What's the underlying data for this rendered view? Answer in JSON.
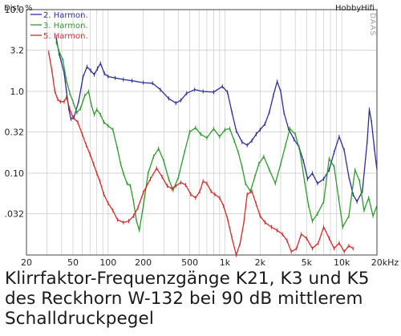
{
  "chart_data": {
    "type": "line",
    "ylabel": "Dist. %",
    "brand": "HobbyHifi",
    "side_label": "DAAS",
    "x_scale": "log",
    "y_scale": "log",
    "xlim": [
      20,
      20000
    ],
    "ylim": [
      0.01,
      10
    ],
    "x_ticks": [
      {
        "value": 20,
        "label": "20"
      },
      {
        "value": 50,
        "label": "50"
      },
      {
        "value": 100,
        "label": "100"
      },
      {
        "value": 200,
        "label": "200"
      },
      {
        "value": 500,
        "label": "500"
      },
      {
        "value": 1000,
        "label": "1k"
      },
      {
        "value": 2000,
        "label": "2k"
      },
      {
        "value": 5000,
        "label": "5k"
      },
      {
        "value": 10000,
        "label": "10k"
      },
      {
        "value": 20000,
        "label": "20kHz"
      }
    ],
    "y_ticks": [
      {
        "value": 10,
        "label": "10.0"
      },
      {
        "value": 3.2,
        "label": "3.2"
      },
      {
        "value": 1.0,
        "label": "1.0"
      },
      {
        "value": 0.32,
        "label": "0.32"
      },
      {
        "value": 0.1,
        "label": "0.10"
      },
      {
        "value": 0.032,
        "label": ".032"
      }
    ],
    "grid": true,
    "legend_position": "top-left",
    "series": [
      {
        "name": "2. Harmon.",
        "color": "#2b2f9a",
        "points": [
          [
            36,
            4.5
          ],
          [
            38,
            2.9
          ],
          [
            42,
            1.7
          ],
          [
            44,
            1.0
          ],
          [
            46,
            0.62
          ],
          [
            48,
            0.46
          ],
          [
            51,
            0.48
          ],
          [
            56,
            0.76
          ],
          [
            61,
            1.5
          ],
          [
            66,
            2.0
          ],
          [
            71,
            1.8
          ],
          [
            76,
            1.6
          ],
          [
            81,
            1.9
          ],
          [
            86,
            2.2
          ],
          [
            93,
            1.65
          ],
          [
            100,
            1.52
          ],
          [
            115,
            1.46
          ],
          [
            135,
            1.4
          ],
          [
            160,
            1.35
          ],
          [
            200,
            1.28
          ],
          [
            240,
            1.26
          ],
          [
            280,
            1.05
          ],
          [
            330,
            0.82
          ],
          [
            380,
            0.72
          ],
          [
            420,
            0.78
          ],
          [
            470,
            0.95
          ],
          [
            550,
            1.05
          ],
          [
            650,
            1.0
          ],
          [
            800,
            0.98
          ],
          [
            950,
            1.15
          ],
          [
            1050,
            0.98
          ],
          [
            1150,
            0.55
          ],
          [
            1250,
            0.33
          ],
          [
            1400,
            0.24
          ],
          [
            1550,
            0.22
          ],
          [
            1700,
            0.25
          ],
          [
            1850,
            0.3
          ],
          [
            2000,
            0.34
          ],
          [
            2200,
            0.4
          ],
          [
            2400,
            0.56
          ],
          [
            2600,
            0.9
          ],
          [
            2800,
            1.32
          ],
          [
            3000,
            1.0
          ],
          [
            3200,
            0.55
          ],
          [
            3500,
            0.35
          ],
          [
            3900,
            0.26
          ],
          [
            4300,
            0.21
          ],
          [
            4700,
            0.14
          ],
          [
            5100,
            0.085
          ],
          [
            5600,
            0.1
          ],
          [
            6200,
            0.075
          ],
          [
            7000,
            0.085
          ],
          [
            7800,
            0.11
          ],
          [
            8600,
            0.18
          ],
          [
            9500,
            0.28
          ],
          [
            10500,
            0.19
          ],
          [
            11500,
            0.09
          ],
          [
            12500,
            0.055
          ],
          [
            13500,
            0.045
          ],
          [
            15000,
            0.06
          ],
          [
            16500,
            0.24
          ],
          [
            17200,
            0.6
          ],
          [
            18000,
            0.42
          ],
          [
            19000,
            0.2
          ],
          [
            20000,
            0.11
          ]
        ]
      },
      {
        "name": "3. Harmon.",
        "color": "#2f9a2f",
        "points": [
          [
            36,
            4.0
          ],
          [
            38,
            3.1
          ],
          [
            41,
            2.4
          ],
          [
            44,
            1.35
          ],
          [
            47,
            0.95
          ],
          [
            50,
            0.75
          ],
          [
            54,
            0.55
          ],
          [
            58,
            0.62
          ],
          [
            63,
            0.88
          ],
          [
            68,
            1.0
          ],
          [
            72,
            0.68
          ],
          [
            76,
            0.52
          ],
          [
            80,
            0.6
          ],
          [
            86,
            0.52
          ],
          [
            92,
            0.42
          ],
          [
            100,
            0.38
          ],
          [
            110,
            0.34
          ],
          [
            120,
            0.2
          ],
          [
            128,
            0.13
          ],
          [
            135,
            0.1
          ],
          [
            145,
            0.075
          ],
          [
            155,
            0.07
          ],
          [
            165,
            0.045
          ],
          [
            175,
            0.026
          ],
          [
            185,
            0.02
          ],
          [
            200,
            0.04
          ],
          [
            220,
            0.1
          ],
          [
            245,
            0.16
          ],
          [
            270,
            0.2
          ],
          [
            300,
            0.14
          ],
          [
            330,
            0.085
          ],
          [
            360,
            0.062
          ],
          [
            400,
            0.09
          ],
          [
            450,
            0.18
          ],
          [
            500,
            0.32
          ],
          [
            560,
            0.36
          ],
          [
            620,
            0.3
          ],
          [
            700,
            0.27
          ],
          [
            800,
            0.35
          ],
          [
            900,
            0.28
          ],
          [
            1000,
            0.34
          ],
          [
            1100,
            0.35
          ],
          [
            1200,
            0.25
          ],
          [
            1300,
            0.18
          ],
          [
            1400,
            0.12
          ],
          [
            1500,
            0.075
          ],
          [
            1650,
            0.06
          ],
          [
            1800,
            0.09
          ],
          [
            1950,
            0.13
          ],
          [
            2150,
            0.16
          ],
          [
            2400,
            0.11
          ],
          [
            2700,
            0.075
          ],
          [
            3000,
            0.13
          ],
          [
            3300,
            0.22
          ],
          [
            3600,
            0.35
          ],
          [
            4000,
            0.3
          ],
          [
            4400,
            0.18
          ],
          [
            4800,
            0.08
          ],
          [
            5200,
            0.04
          ],
          [
            5600,
            0.026
          ],
          [
            6200,
            0.032
          ],
          [
            7000,
            0.045
          ],
          [
            7800,
            0.15
          ],
          [
            8600,
            0.12
          ],
          [
            9400,
            0.05
          ],
          [
            10200,
            0.022
          ],
          [
            11500,
            0.03
          ],
          [
            13000,
            0.11
          ],
          [
            14200,
            0.08
          ],
          [
            15500,
            0.035
          ],
          [
            17000,
            0.05
          ],
          [
            18500,
            0.03
          ],
          [
            20000,
            0.04
          ]
        ]
      },
      {
        "name": "5. Harmon.",
        "color": "#d42a2a",
        "points": [
          [
            31,
            3.0
          ],
          [
            33,
            1.8
          ],
          [
            35,
            1.0
          ],
          [
            37,
            0.8
          ],
          [
            39,
            0.75
          ],
          [
            42,
            0.75
          ],
          [
            44,
            0.85
          ],
          [
            47,
            0.6
          ],
          [
            50,
            0.48
          ],
          [
            55,
            0.42
          ],
          [
            60,
            0.3
          ],
          [
            65,
            0.22
          ],
          [
            70,
            0.17
          ],
          [
            75,
            0.13
          ],
          [
            80,
            0.1
          ],
          [
            85,
            0.08
          ],
          [
            92,
            0.055
          ],
          [
            100,
            0.043
          ],
          [
            110,
            0.035
          ],
          [
            120,
            0.027
          ],
          [
            135,
            0.025
          ],
          [
            150,
            0.026
          ],
          [
            165,
            0.03
          ],
          [
            180,
            0.038
          ],
          [
            200,
            0.058
          ],
          [
            230,
            0.085
          ],
          [
            260,
            0.115
          ],
          [
            290,
            0.09
          ],
          [
            320,
            0.07
          ],
          [
            350,
            0.065
          ],
          [
            380,
            0.07
          ],
          [
            420,
            0.077
          ],
          [
            460,
            0.072
          ],
          [
            510,
            0.055
          ],
          [
            560,
            0.05
          ],
          [
            610,
            0.06
          ],
          [
            650,
            0.08
          ],
          [
            700,
            0.075
          ],
          [
            760,
            0.06
          ],
          [
            820,
            0.055
          ],
          [
            900,
            0.05
          ],
          [
            970,
            0.04
          ],
          [
            1050,
            0.028
          ],
          [
            1150,
            0.016
          ],
          [
            1250,
            0.01
          ],
          [
            1350,
            0.014
          ],
          [
            1450,
            0.025
          ],
          [
            1550,
            0.055
          ],
          [
            1700,
            0.06
          ],
          [
            1850,
            0.042
          ],
          [
            2000,
            0.03
          ],
          [
            2200,
            0.025
          ],
          [
            2500,
            0.022
          ],
          [
            2800,
            0.02
          ],
          [
            3100,
            0.018
          ],
          [
            3400,
            0.015
          ],
          [
            3700,
            0.011
          ],
          [
            4100,
            0.012
          ],
          [
            4500,
            0.018
          ],
          [
            5000,
            0.016
          ],
          [
            5600,
            0.012
          ],
          [
            6300,
            0.014
          ],
          [
            7000,
            0.022
          ],
          [
            7800,
            0.016
          ],
          [
            8600,
            0.012
          ],
          [
            9500,
            0.014
          ],
          [
            10500,
            0.011
          ],
          [
            11500,
            0.013
          ],
          [
            12500,
            0.012
          ]
        ]
      }
    ],
    "caption": [
      "Klirrfaktor-Frequenzgänge K21, K3 und K5",
      "des Reckhorn W-132 bei 90 dB mittlerem",
      "Schalldruckpegel"
    ]
  }
}
